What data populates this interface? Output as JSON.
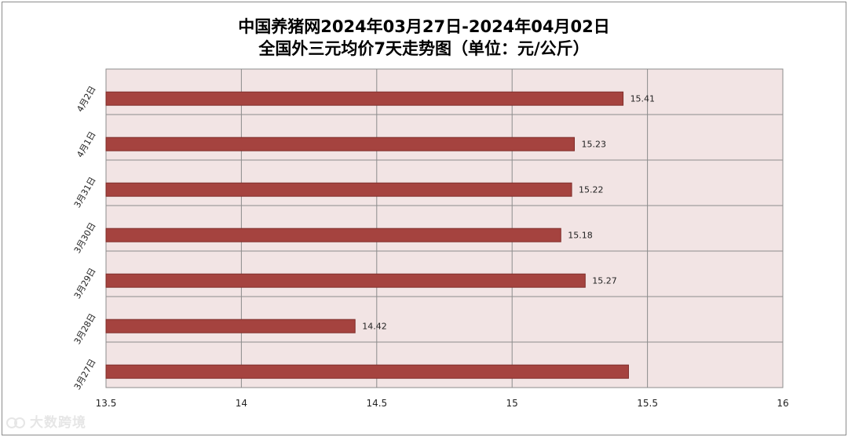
{
  "chart_data": {
    "type": "bar",
    "orientation": "horizontal",
    "title": "中国养猪网2024年03月27日-2024年04月02日",
    "subtitle": "全国外三元均价7天走势图（单位：元/公斤）",
    "categories": [
      "4月2日",
      "4月1日",
      "3月31日",
      "3月30日",
      "3月29日",
      "3月28日",
      "3月27日"
    ],
    "values": [
      15.41,
      15.23,
      15.22,
      15.18,
      15.27,
      14.42,
      15.43
    ],
    "data_labels": [
      "15.41",
      "15.23",
      "15.22",
      "15.18",
      "15.27",
      "14.42",
      ""
    ],
    "xlim": [
      13.5,
      16
    ],
    "x_ticks": [
      "13.5",
      "14",
      "14.5",
      "15",
      "15.5",
      "16"
    ],
    "grid": true,
    "legend": "none",
    "colors": {
      "bar": "#a5433f",
      "bar_border": "#7f2d2a",
      "plot_bg": "#f2e4e4",
      "grid": "#8c8c8c"
    }
  },
  "watermark": {
    "text": "大数跨境"
  }
}
